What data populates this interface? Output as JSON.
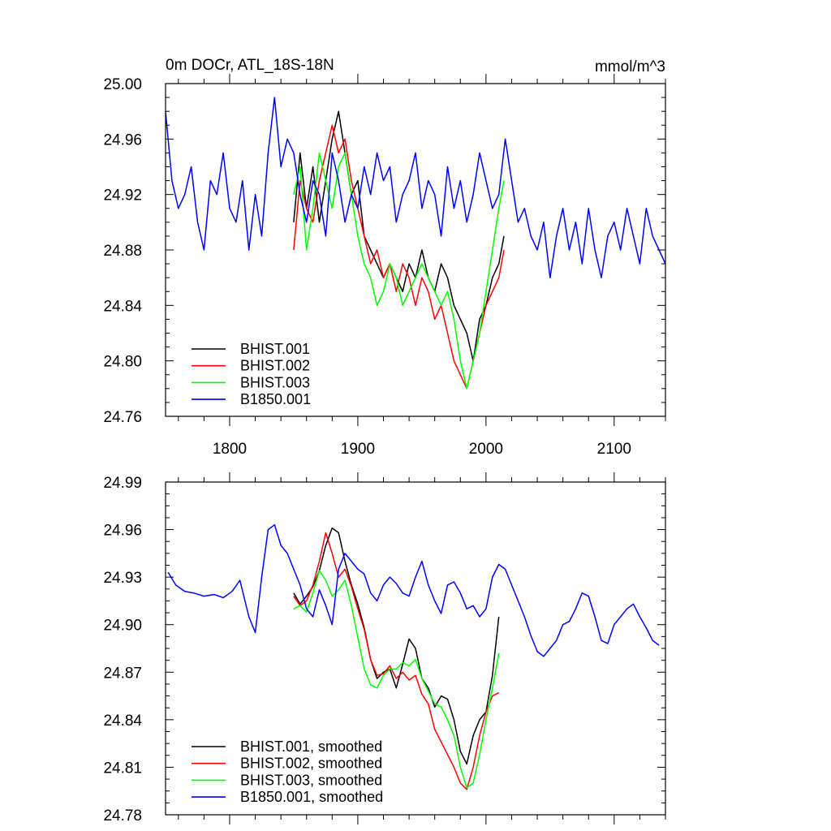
{
  "chart_data": [
    {
      "type": "line",
      "title": "0m DOCr, ATL_18S-18N",
      "units": "mmol/m^3",
      "xlim": [
        1750,
        2140
      ],
      "ylim": [
        24.76,
        25.0
      ],
      "x_ticks": [
        1800,
        1900,
        2000,
        2100
      ],
      "x_tick_labels": [
        "1800",
        "1900",
        "2000",
        "2100"
      ],
      "y_ticks": [
        24.76,
        24.8,
        24.84,
        24.88,
        24.92,
        24.96,
        25.0
      ],
      "y_tick_labels": [
        "24.76",
        "24.80",
        "24.84",
        "24.88",
        "24.92",
        "24.96",
        "25.00"
      ],
      "legend": [
        "BHIST.001",
        "BHIST.002",
        "BHIST.003",
        "B1850.001"
      ],
      "series": [
        {
          "name": "BHIST.001",
          "color": "#000000",
          "x": [
            1850,
            1855,
            1860,
            1865,
            1870,
            1875,
            1880,
            1885,
            1890,
            1895,
            1900,
            1905,
            1910,
            1915,
            1920,
            1925,
            1930,
            1935,
            1940,
            1945,
            1950,
            1955,
            1960,
            1965,
            1970,
            1975,
            1980,
            1985,
            1990,
            1995,
            2000,
            2005,
            2010,
            2014
          ],
          "y": [
            24.9,
            24.95,
            24.91,
            24.94,
            24.9,
            24.93,
            24.96,
            24.98,
            24.95,
            24.92,
            24.93,
            24.89,
            24.88,
            24.87,
            24.86,
            24.87,
            24.86,
            24.85,
            24.87,
            24.86,
            24.88,
            24.86,
            24.85,
            24.87,
            24.86,
            24.84,
            24.83,
            24.82,
            24.8,
            24.83,
            24.84,
            24.86,
            24.87,
            24.89
          ]
        },
        {
          "name": "BHIST.002",
          "color": "#ff0000",
          "x": [
            1850,
            1855,
            1860,
            1865,
            1870,
            1875,
            1880,
            1885,
            1890,
            1895,
            1900,
            1905,
            1910,
            1915,
            1920,
            1925,
            1930,
            1935,
            1940,
            1945,
            1950,
            1955,
            1960,
            1965,
            1970,
            1975,
            1980,
            1985,
            1990,
            1995,
            2000,
            2005,
            2010,
            2014
          ],
          "y": [
            24.88,
            24.93,
            24.91,
            24.9,
            24.93,
            24.95,
            24.97,
            24.95,
            24.96,
            24.93,
            24.91,
            24.89,
            24.87,
            24.88,
            24.86,
            24.87,
            24.85,
            24.87,
            24.86,
            24.84,
            24.86,
            24.85,
            24.83,
            24.84,
            24.82,
            24.8,
            24.79,
            24.78,
            24.8,
            24.82,
            24.84,
            24.85,
            24.86,
            24.88
          ]
        },
        {
          "name": "BHIST.003",
          "color": "#00ff00",
          "x": [
            1850,
            1855,
            1860,
            1865,
            1870,
            1875,
            1880,
            1885,
            1890,
            1895,
            1900,
            1905,
            1910,
            1915,
            1920,
            1925,
            1930,
            1935,
            1940,
            1945,
            1950,
            1955,
            1960,
            1965,
            1970,
            1975,
            1980,
            1985,
            1990,
            1995,
            2000,
            2005,
            2010,
            2014
          ],
          "y": [
            24.92,
            24.94,
            24.88,
            24.91,
            24.95,
            24.93,
            24.91,
            24.94,
            24.95,
            24.92,
            24.89,
            24.87,
            24.86,
            24.84,
            24.85,
            24.87,
            24.86,
            24.84,
            24.85,
            24.86,
            24.87,
            24.86,
            24.85,
            24.84,
            24.85,
            24.83,
            24.8,
            24.78,
            24.8,
            24.82,
            24.85,
            24.88,
            24.91,
            24.93
          ]
        },
        {
          "name": "B1850.001",
          "color": "#0000ff",
          "x": [
            1750,
            1755,
            1760,
            1765,
            1770,
            1775,
            1780,
            1785,
            1790,
            1795,
            1800,
            1805,
            1810,
            1815,
            1820,
            1825,
            1830,
            1835,
            1840,
            1845,
            1850,
            1855,
            1860,
            1865,
            1870,
            1875,
            1880,
            1885,
            1890,
            1895,
            1900,
            1905,
            1910,
            1915,
            1920,
            1925,
            1930,
            1935,
            1940,
            1945,
            1950,
            1955,
            1960,
            1965,
            1970,
            1975,
            1980,
            1985,
            1990,
            1995,
            2000,
            2005,
            2010,
            2015,
            2020,
            2025,
            2030,
            2035,
            2040,
            2045,
            2050,
            2055,
            2060,
            2065,
            2070,
            2075,
            2080,
            2085,
            2090,
            2095,
            2100,
            2105,
            2110,
            2115,
            2120,
            2125,
            2130,
            2135,
            2140
          ],
          "y": [
            24.98,
            24.93,
            24.91,
            24.92,
            24.94,
            24.9,
            24.88,
            24.93,
            24.92,
            24.95,
            24.91,
            24.9,
            24.93,
            24.88,
            24.92,
            24.89,
            24.95,
            24.99,
            24.94,
            24.96,
            24.95,
            24.92,
            24.9,
            24.93,
            24.92,
            24.89,
            24.95,
            24.93,
            24.9,
            24.92,
            24.91,
            24.94,
            24.92,
            24.95,
            24.93,
            24.94,
            24.9,
            24.92,
            24.93,
            24.95,
            24.91,
            24.93,
            24.92,
            24.89,
            24.94,
            24.91,
            24.93,
            24.9,
            24.92,
            24.95,
            24.93,
            24.91,
            24.92,
            24.96,
            24.93,
            24.9,
            24.91,
            24.89,
            24.88,
            24.9,
            24.86,
            24.89,
            24.91,
            24.88,
            24.9,
            24.87,
            24.91,
            24.88,
            24.86,
            24.89,
            24.9,
            24.88,
            24.91,
            24.89,
            24.87,
            24.91,
            24.89,
            24.88,
            24.87
          ]
        }
      ]
    },
    {
      "type": "line",
      "xlim": [
        1750,
        2140
      ],
      "ylim": [
        24.78,
        24.99
      ],
      "x_ticks": [
        1800,
        1900,
        2000,
        2100
      ],
      "y_ticks": [
        24.78,
        24.81,
        24.84,
        24.87,
        24.9,
        24.93,
        24.96,
        24.99
      ],
      "y_tick_labels": [
        "24.78",
        "24.81",
        "24.84",
        "24.87",
        "24.90",
        "24.93",
        "24.96",
        "24.99"
      ],
      "legend": [
        "BHIST.001, smoothed",
        "BHIST.002, smoothed",
        "BHIST.003, smoothed",
        "B1850.001, smoothed"
      ],
      "series": [
        {
          "name": "BHIST.001, smoothed",
          "color": "#000000",
          "x": [
            1850,
            1855,
            1860,
            1865,
            1870,
            1875,
            1880,
            1885,
            1890,
            1895,
            1900,
            1905,
            1910,
            1915,
            1920,
            1925,
            1930,
            1935,
            1940,
            1945,
            1950,
            1955,
            1960,
            1965,
            1970,
            1975,
            1980,
            1985,
            1990,
            1995,
            2000,
            2005,
            2010
          ],
          "y": [
            24.92,
            24.913,
            24.918,
            24.924,
            24.934,
            24.95,
            24.961,
            24.958,
            24.94,
            24.925,
            24.913,
            24.898,
            24.878,
            24.866,
            24.87,
            24.872,
            24.86,
            24.875,
            24.891,
            24.885,
            24.866,
            24.86,
            24.848,
            24.855,
            24.853,
            24.84,
            24.82,
            24.812,
            24.83,
            24.84,
            24.845,
            24.868,
            24.905
          ]
        },
        {
          "name": "BHIST.002, smoothed",
          "color": "#ff0000",
          "x": [
            1850,
            1855,
            1860,
            1865,
            1870,
            1875,
            1880,
            1885,
            1890,
            1895,
            1900,
            1905,
            1910,
            1915,
            1920,
            1925,
            1930,
            1935,
            1940,
            1945,
            1950,
            1955,
            1960,
            1965,
            1970,
            1975,
            1980,
            1985,
            1990,
            1995,
            2000,
            2005,
            2010
          ],
          "y": [
            24.918,
            24.912,
            24.915,
            24.925,
            24.94,
            24.958,
            24.945,
            24.93,
            24.935,
            24.924,
            24.91,
            24.897,
            24.878,
            24.868,
            24.869,
            24.874,
            24.866,
            24.87,
            24.865,
            24.868,
            24.856,
            24.85,
            24.834,
            24.826,
            24.818,
            24.81,
            24.8,
            24.796,
            24.81,
            24.83,
            24.845,
            24.855,
            24.857
          ]
        },
        {
          "name": "BHIST.003, smoothed",
          "color": "#00ff00",
          "x": [
            1850,
            1855,
            1860,
            1865,
            1870,
            1875,
            1880,
            1885,
            1890,
            1895,
            1900,
            1905,
            1910,
            1915,
            1920,
            1925,
            1930,
            1935,
            1940,
            1945,
            1950,
            1955,
            1960,
            1965,
            1970,
            1975,
            1980,
            1985,
            1990,
            1995,
            2000,
            2005,
            2010
          ],
          "y": [
            24.91,
            24.912,
            24.908,
            24.92,
            24.934,
            24.928,
            24.918,
            24.922,
            24.928,
            24.912,
            24.892,
            24.872,
            24.862,
            24.86,
            24.868,
            24.872,
            24.872,
            24.876,
            24.874,
            24.878,
            24.866,
            24.858,
            24.85,
            24.848,
            24.84,
            24.83,
            24.81,
            24.797,
            24.8,
            24.818,
            24.84,
            24.86,
            24.882
          ]
        },
        {
          "name": "B1850.001, smoothed",
          "color": "#0000ff",
          "x": [
            1752,
            1758,
            1765,
            1772,
            1780,
            1788,
            1795,
            1802,
            1808,
            1815,
            1820,
            1825,
            1830,
            1835,
            1840,
            1845,
            1850,
            1855,
            1860,
            1865,
            1870,
            1875,
            1880,
            1885,
            1890,
            1895,
            1900,
            1905,
            1910,
            1915,
            1920,
            1925,
            1930,
            1935,
            1940,
            1945,
            1950,
            1955,
            1960,
            1965,
            1970,
            1975,
            1980,
            1985,
            1990,
            1995,
            2000,
            2005,
            2010,
            2015,
            2020,
            2025,
            2030,
            2035,
            2040,
            2045,
            2050,
            2055,
            2060,
            2065,
            2070,
            2075,
            2080,
            2085,
            2090,
            2095,
            2100,
            2105,
            2110,
            2115,
            2120,
            2125,
            2130,
            2135
          ],
          "y": [
            24.933,
            24.925,
            24.921,
            24.92,
            24.918,
            24.919,
            24.917,
            24.921,
            24.928,
            24.905,
            24.895,
            24.93,
            24.96,
            24.963,
            24.95,
            24.945,
            24.935,
            24.925,
            24.91,
            24.905,
            24.922,
            24.912,
            24.9,
            24.935,
            24.945,
            24.94,
            24.935,
            24.932,
            24.92,
            24.915,
            24.925,
            24.93,
            24.926,
            24.92,
            24.918,
            24.93,
            24.94,
            24.925,
            24.915,
            24.907,
            24.925,
            24.927,
            24.92,
            24.91,
            24.912,
            24.905,
            24.91,
            24.93,
            24.938,
            24.935,
            24.925,
            24.915,
            24.905,
            24.893,
            24.883,
            24.88,
            24.885,
            24.89,
            24.9,
            24.902,
            24.91,
            24.92,
            24.918,
            24.905,
            24.89,
            24.888,
            24.9,
            24.905,
            24.91,
            24.913,
            24.905,
            24.898,
            24.89,
            24.887
          ]
        }
      ]
    }
  ]
}
